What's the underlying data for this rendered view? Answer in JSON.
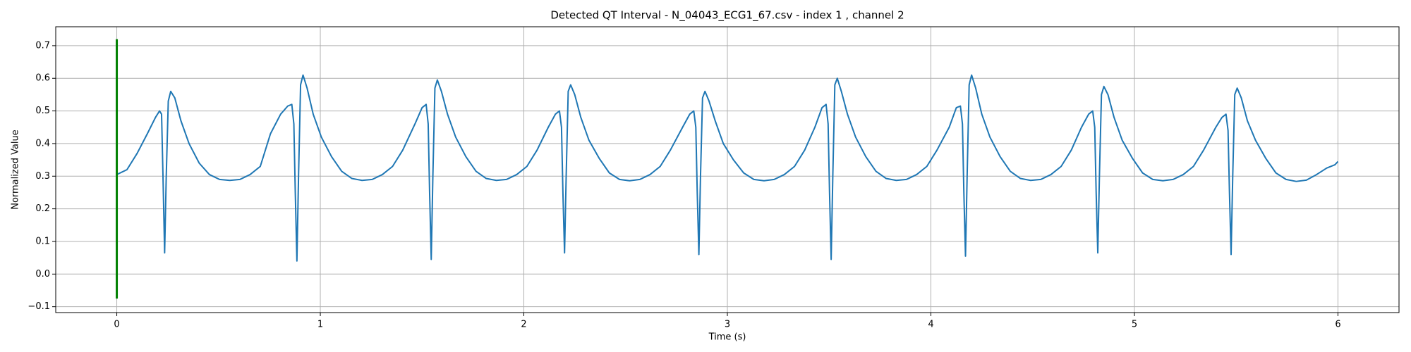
{
  "chart_data": {
    "type": "line",
    "title": "Detected QT Interval - N_04043_ECG1_67.csv - index 1 , channel 2",
    "xlabel": "Time (s)",
    "ylabel": "Normalized Value",
    "xlim": [
      -0.3,
      6.3
    ],
    "ylim": [
      -0.118,
      0.758
    ],
    "xticks": [
      0,
      1,
      2,
      3,
      4,
      5,
      6
    ],
    "yticks": [
      {
        "value": -0.1,
        "label": "−0.1"
      },
      {
        "value": 0,
        "label": "0.0"
      },
      0.1,
      0.2,
      0.3,
      0.4,
      0.5,
      0.6,
      0.7
    ],
    "grid": true,
    "series": [
      {
        "color": "#1f77b4",
        "x": [
          0.0,
          0.05,
          0.1,
          0.15,
          0.19,
          0.21,
          0.22,
          0.227,
          0.235,
          0.243,
          0.253,
          0.265,
          0.285,
          0.315,
          0.355,
          0.405,
          0.455,
          0.505,
          0.555,
          0.605,
          0.655,
          0.705,
          0.755,
          0.805,
          0.84,
          0.86,
          0.87,
          0.877,
          0.885,
          0.893,
          0.903,
          0.915,
          0.935,
          0.965,
          1.005,
          1.055,
          1.105,
          1.155,
          1.205,
          1.255,
          1.305,
          1.355,
          1.405,
          1.465,
          1.5,
          1.52,
          1.53,
          1.537,
          1.545,
          1.553,
          1.563,
          1.575,
          1.595,
          1.625,
          1.665,
          1.715,
          1.765,
          1.815,
          1.865,
          1.915,
          1.965,
          2.015,
          2.065,
          2.12,
          2.155,
          2.175,
          2.185,
          2.192,
          2.2,
          2.208,
          2.218,
          2.23,
          2.25,
          2.28,
          2.32,
          2.37,
          2.42,
          2.47,
          2.52,
          2.57,
          2.62,
          2.67,
          2.72,
          2.78,
          2.815,
          2.835,
          2.845,
          2.852,
          2.86,
          2.868,
          2.878,
          2.89,
          2.91,
          2.94,
          2.98,
          3.03,
          3.08,
          3.13,
          3.18,
          3.23,
          3.28,
          3.33,
          3.38,
          3.43,
          3.465,
          3.485,
          3.495,
          3.502,
          3.51,
          3.518,
          3.528,
          3.54,
          3.56,
          3.59,
          3.63,
          3.68,
          3.73,
          3.78,
          3.83,
          3.88,
          3.93,
          3.98,
          4.03,
          4.09,
          4.125,
          4.145,
          4.155,
          4.162,
          4.17,
          4.178,
          4.188,
          4.2,
          4.22,
          4.25,
          4.29,
          4.34,
          4.39,
          4.44,
          4.49,
          4.54,
          4.59,
          4.64,
          4.69,
          4.74,
          4.775,
          4.795,
          4.805,
          4.812,
          4.82,
          4.828,
          4.838,
          4.85,
          4.87,
          4.9,
          4.94,
          4.99,
          5.04,
          5.09,
          5.14,
          5.19,
          5.24,
          5.29,
          5.34,
          5.4,
          5.43,
          5.45,
          5.46,
          5.467,
          5.475,
          5.483,
          5.493,
          5.505,
          5.525,
          5.555,
          5.595,
          5.645,
          5.695,
          5.745,
          5.795,
          5.845,
          5.895,
          5.945,
          5.985,
          6.0
        ],
        "values": [
          0.305,
          0.32,
          0.37,
          0.43,
          0.48,
          0.5,
          0.49,
          0.3,
          0.065,
          0.3,
          0.53,
          0.56,
          0.54,
          0.47,
          0.4,
          0.34,
          0.305,
          0.29,
          0.287,
          0.29,
          0.305,
          0.33,
          0.43,
          0.49,
          0.515,
          0.52,
          0.46,
          0.25,
          0.04,
          0.3,
          0.58,
          0.61,
          0.57,
          0.49,
          0.42,
          0.36,
          0.315,
          0.293,
          0.287,
          0.29,
          0.305,
          0.33,
          0.38,
          0.46,
          0.51,
          0.52,
          0.46,
          0.25,
          0.045,
          0.3,
          0.57,
          0.595,
          0.56,
          0.49,
          0.42,
          0.36,
          0.315,
          0.293,
          0.287,
          0.29,
          0.305,
          0.33,
          0.38,
          0.45,
          0.49,
          0.5,
          0.45,
          0.25,
          0.065,
          0.3,
          0.56,
          0.58,
          0.55,
          0.48,
          0.41,
          0.355,
          0.31,
          0.29,
          0.286,
          0.29,
          0.305,
          0.33,
          0.38,
          0.45,
          0.49,
          0.5,
          0.45,
          0.25,
          0.06,
          0.3,
          0.54,
          0.56,
          0.53,
          0.47,
          0.4,
          0.35,
          0.31,
          0.29,
          0.286,
          0.29,
          0.305,
          0.33,
          0.38,
          0.45,
          0.51,
          0.52,
          0.46,
          0.25,
          0.045,
          0.3,
          0.58,
          0.6,
          0.56,
          0.49,
          0.42,
          0.36,
          0.315,
          0.293,
          0.287,
          0.29,
          0.305,
          0.33,
          0.38,
          0.45,
          0.51,
          0.515,
          0.46,
          0.25,
          0.055,
          0.3,
          0.58,
          0.61,
          0.57,
          0.49,
          0.42,
          0.36,
          0.315,
          0.293,
          0.287,
          0.29,
          0.305,
          0.33,
          0.38,
          0.45,
          0.49,
          0.5,
          0.45,
          0.25,
          0.065,
          0.3,
          0.55,
          0.575,
          0.55,
          0.48,
          0.41,
          0.355,
          0.31,
          0.29,
          0.286,
          0.29,
          0.305,
          0.33,
          0.38,
          0.45,
          0.48,
          0.49,
          0.44,
          0.25,
          0.06,
          0.3,
          0.55,
          0.57,
          0.54,
          0.47,
          0.41,
          0.355,
          0.31,
          0.29,
          0.284,
          0.288,
          0.305,
          0.325,
          0.335,
          0.345
        ]
      },
      {
        "color": "#008000",
        "x": [
          0,
          0
        ],
        "values": [
          -0.075,
          0.72
        ]
      }
    ]
  }
}
